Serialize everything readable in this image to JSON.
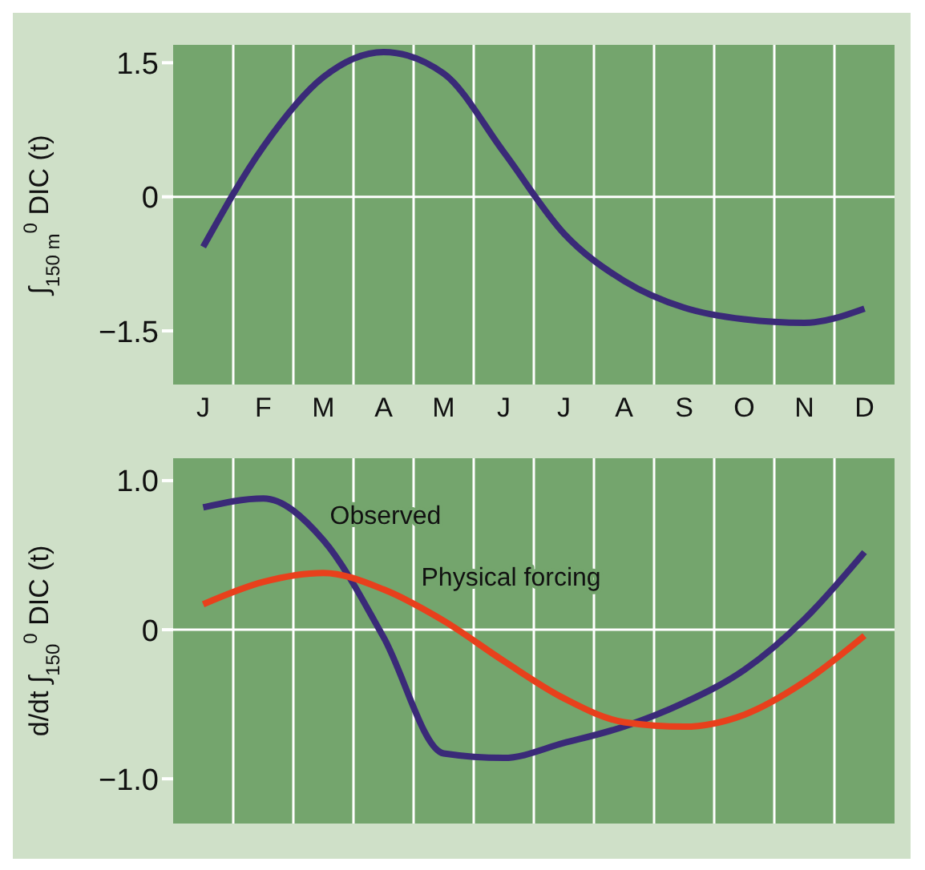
{
  "chart_data": [
    {
      "type": "line",
      "ylabel": "∫$_{150 m}$$^{0}$ DIC (t)",
      "categories": [
        "J",
        "F",
        "M",
        "A",
        "M",
        "J",
        "J",
        "A",
        "S",
        "O",
        "N",
        "D"
      ],
      "ylim": [
        -2.1,
        1.7
      ],
      "yticks": [
        {
          "value": 1.5,
          "label": "1.5"
        },
        0,
        {
          "value": -1.5,
          "label": "−1.5"
        }
      ],
      "grid": "x",
      "legend": false,
      "series": [
        {
          "color": "#3a2a78",
          "values": [
            -0.56,
            0.56,
            1.34,
            1.62,
            1.38,
            0.5,
            -0.41,
            -0.94,
            -1.24,
            -1.37,
            -1.41,
            -1.25
          ]
        }
      ],
      "ref_lines": [
        {
          "axis": "y",
          "value": 0,
          "color": "#ffffff"
        }
      ]
    },
    {
      "type": "line",
      "ylabel": "d/dt ∫$_{150}$$^{0}$ DIC (t)",
      "categories": [
        null,
        null,
        null,
        null,
        null,
        null,
        null,
        null,
        null,
        null,
        null,
        null
      ],
      "ylim": [
        -1.3,
        1.15
      ],
      "yticks": [
        {
          "value": 1,
          "label": "1.0"
        },
        0,
        {
          "value": -1,
          "label": "−1.0"
        }
      ],
      "tick_labels": "y",
      "grid": "x",
      "legend": false,
      "series": [
        {
          "name": "Observed",
          "color": "#3a2a78",
          "values": [
            0.82,
            0.88,
            0.6,
            -0.05,
            -0.83,
            -0.86,
            -0.76,
            -0.65,
            -0.49,
            -0.27,
            0.07,
            0.52
          ]
        },
        {
          "name": "Physical forcing",
          "color": "#e8401c",
          "values": [
            0.17,
            0.32,
            0.38,
            0.27,
            0.06,
            -0.21,
            -0.46,
            -0.62,
            -0.65,
            -0.57,
            -0.35,
            -0.04
          ]
        }
      ],
      "ref_lines": [
        {
          "axis": "y",
          "value": 0,
          "color": "#ffffff"
        }
      ]
    }
  ]
}
